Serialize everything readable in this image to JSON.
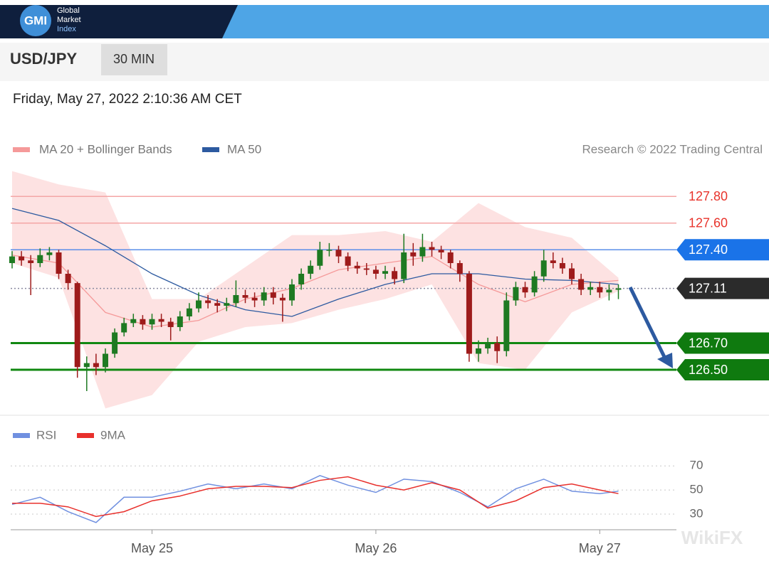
{
  "header": {
    "logo": "GMI",
    "brand": [
      "Global",
      "Market",
      "Index"
    ],
    "symbol": "USD/JPY",
    "interval": "30 MIN",
    "timestamp": "Friday, May 27, 2022 2:10:36 AM CET"
  },
  "watermark": "WikiFX",
  "chart_data": {
    "type": "candlestick",
    "legend": [
      {
        "name": "MA 20 + Bollinger Bands",
        "color": "#f59a9a"
      },
      {
        "name": "MA 50",
        "color": "#2d5aa0"
      }
    ],
    "source": "Research © 2022 Trading Central",
    "up_color": "#1e7a22",
    "down_color": "#9e1b1b",
    "ylim": [
      126.18,
      128.02
    ],
    "categories": [
      null,
      null,
      null,
      null,
      null,
      null,
      null,
      null,
      null,
      null,
      null,
      null,
      null,
      null,
      null,
      "May 25",
      null,
      null,
      null,
      null,
      null,
      null,
      null,
      null,
      null,
      null,
      null,
      null,
      null,
      null,
      null,
      null,
      null,
      null,
      null,
      null,
      null,
      null,
      null,
      "May 26",
      null,
      null,
      null,
      null,
      null,
      null,
      null,
      null,
      null,
      null,
      null,
      null,
      null,
      null,
      null,
      null,
      null,
      null,
      null,
      null,
      null,
      null,
      null,
      "May 27",
      null,
      null
    ],
    "open": [
      127.3,
      127.35,
      127.32,
      127.3,
      127.36,
      127.38,
      127.22,
      127.15,
      126.52,
      126.55,
      126.52,
      126.62,
      126.78,
      126.85,
      126.88,
      126.84,
      126.88,
      126.86,
      126.82,
      126.9,
      126.96,
      127.02,
      127.0,
      126.98,
      127.0,
      127.06,
      127.04,
      127.02,
      127.08,
      127.04,
      127.02,
      127.14,
      127.22,
      127.28,
      127.4,
      127.4,
      127.35,
      127.28,
      127.26,
      127.25,
      127.22,
      127.24,
      127.18,
      127.38,
      127.35,
      127.42,
      127.4,
      127.38,
      127.3,
      127.22,
      126.62,
      126.66,
      126.7,
      126.64,
      127.02,
      127.12,
      127.08,
      127.2,
      127.32,
      127.3,
      127.26,
      127.18,
      127.1,
      127.12,
      127.08,
      127.1
    ],
    "high": [
      127.39,
      127.39,
      127.36,
      127.41,
      127.42,
      127.4,
      127.25,
      127.16,
      126.6,
      126.62,
      126.66,
      126.81,
      126.89,
      126.92,
      126.91,
      126.92,
      126.92,
      126.89,
      126.94,
      127.0,
      127.08,
      127.06,
      127.03,
      127.04,
      127.17,
      127.1,
      127.08,
      127.12,
      127.12,
      127.07,
      127.18,
      127.26,
      127.32,
      127.46,
      127.45,
      127.43,
      127.38,
      127.31,
      127.3,
      127.28,
      127.28,
      127.27,
      127.52,
      127.45,
      127.52,
      127.46,
      127.43,
      127.4,
      127.32,
      127.24,
      126.72,
      126.74,
      126.75,
      127.08,
      127.16,
      127.16,
      127.24,
      127.4,
      127.38,
      127.34,
      127.3,
      127.22,
      127.16,
      127.16,
      127.14,
      127.14
    ],
    "low": [
      127.26,
      127.28,
      127.06,
      127.27,
      127.32,
      127.18,
      127.1,
      126.44,
      126.34,
      126.46,
      126.48,
      126.59,
      126.75,
      126.82,
      126.8,
      126.8,
      126.82,
      126.72,
      126.79,
      126.87,
      126.93,
      126.96,
      126.93,
      126.94,
      126.97,
      127.0,
      126.97,
      126.98,
      126.99,
      126.86,
      126.98,
      127.1,
      127.18,
      127.25,
      127.35,
      127.3,
      127.24,
      127.22,
      127.21,
      127.18,
      127.18,
      127.14,
      127.15,
      127.28,
      127.31,
      127.35,
      127.33,
      127.26,
      127.16,
      126.56,
      126.56,
      126.62,
      126.55,
      126.6,
      126.98,
      127.04,
      127.05,
      127.16,
      127.26,
      127.22,
      127.14,
      127.06,
      127.06,
      127.04,
      127.02,
      127.03
    ],
    "close": [
      127.35,
      127.32,
      127.3,
      127.36,
      127.38,
      127.22,
      127.15,
      126.52,
      126.55,
      126.52,
      126.62,
      126.78,
      126.85,
      126.88,
      126.84,
      126.88,
      126.86,
      126.82,
      126.9,
      126.96,
      127.02,
      127.0,
      126.98,
      127.0,
      127.06,
      127.04,
      127.02,
      127.08,
      127.04,
      127.02,
      127.14,
      127.22,
      127.28,
      127.4,
      127.4,
      127.35,
      127.28,
      127.26,
      127.25,
      127.22,
      127.24,
      127.18,
      127.38,
      127.35,
      127.42,
      127.4,
      127.38,
      127.3,
      127.22,
      126.62,
      126.66,
      126.7,
      126.64,
      127.02,
      127.12,
      127.08,
      127.2,
      127.32,
      127.3,
      127.26,
      127.18,
      127.1,
      127.12,
      127.08,
      127.1,
      127.11
    ],
    "overlays": {
      "band_color": "#fde2e2",
      "x": [
        0,
        5,
        10,
        15,
        20,
        25,
        30,
        35,
        40,
        45,
        50,
        55,
        60,
        65
      ],
      "upper": [
        127.99,
        127.89,
        127.83,
        127.03,
        127.03,
        127.27,
        127.51,
        127.51,
        127.54,
        127.46,
        127.75,
        127.57,
        127.49,
        127.19
      ],
      "lower": [
        127.3,
        127.19,
        126.21,
        126.31,
        126.71,
        126.82,
        126.85,
        126.95,
        127.03,
        127.14,
        126.55,
        126.5,
        126.93,
        127.09
      ],
      "ma20": [
        127.36,
        127.3,
        126.93,
        126.82,
        126.87,
        127.03,
        127.11,
        127.25,
        127.3,
        127.35,
        127.14,
        127.01,
        127.14,
        127.17
      ],
      "ma50": [
        127.71,
        127.62,
        127.43,
        127.22,
        127.06,
        126.95,
        126.9,
        127.03,
        127.14,
        127.22,
        127.22,
        127.18,
        127.17,
        127.14
      ]
    },
    "levels": [
      {
        "value": 127.8,
        "label": "127.80",
        "color": "#e8342c",
        "line_color": "#f4a6a6",
        "box": false
      },
      {
        "value": 127.6,
        "label": "127.60",
        "color": "#e8342c",
        "line_color": "#f4a6a6",
        "box": false
      },
      {
        "value": 127.4,
        "label": "127.40",
        "color": "#1a73e8",
        "line_color": "#5b8fe8",
        "box": true
      },
      {
        "value": 127.11,
        "label": "127.11",
        "color": "#2b2b2b",
        "line_color": "#8a8aa0",
        "box": true,
        "dotted": true
      },
      {
        "value": 126.7,
        "label": "126.70",
        "color": "#0f7a0f",
        "line_color": "#118811",
        "box": true
      },
      {
        "value": 126.5,
        "label": "126.50",
        "color": "#0f7a0f",
        "line_color": "#118811",
        "box": true
      }
    ],
    "rsi": {
      "ylim": [
        17,
        79
      ],
      "yticks": [
        70,
        50,
        30
      ],
      "x": [
        0,
        3,
        6,
        9,
        12,
        15,
        18,
        21,
        24,
        27,
        30,
        33,
        36,
        39,
        42,
        45,
        48,
        51,
        54,
        57,
        60,
        63,
        65
      ],
      "series": [
        {
          "name": "RSI",
          "color": "#7090e0",
          "values": [
            38,
            44,
            32,
            23,
            44,
            44,
            49,
            55,
            51,
            55,
            51,
            62,
            54,
            48,
            59,
            57,
            48,
            36,
            51,
            59,
            49,
            47,
            49
          ]
        },
        {
          "name": "9MA",
          "color": "#e8302c",
          "values": [
            39,
            39,
            36,
            28,
            32,
            41,
            45,
            51,
            53,
            53,
            52,
            58,
            61,
            54,
            50,
            56,
            50,
            35,
            41,
            52,
            55,
            50,
            47
          ]
        }
      ]
    }
  }
}
